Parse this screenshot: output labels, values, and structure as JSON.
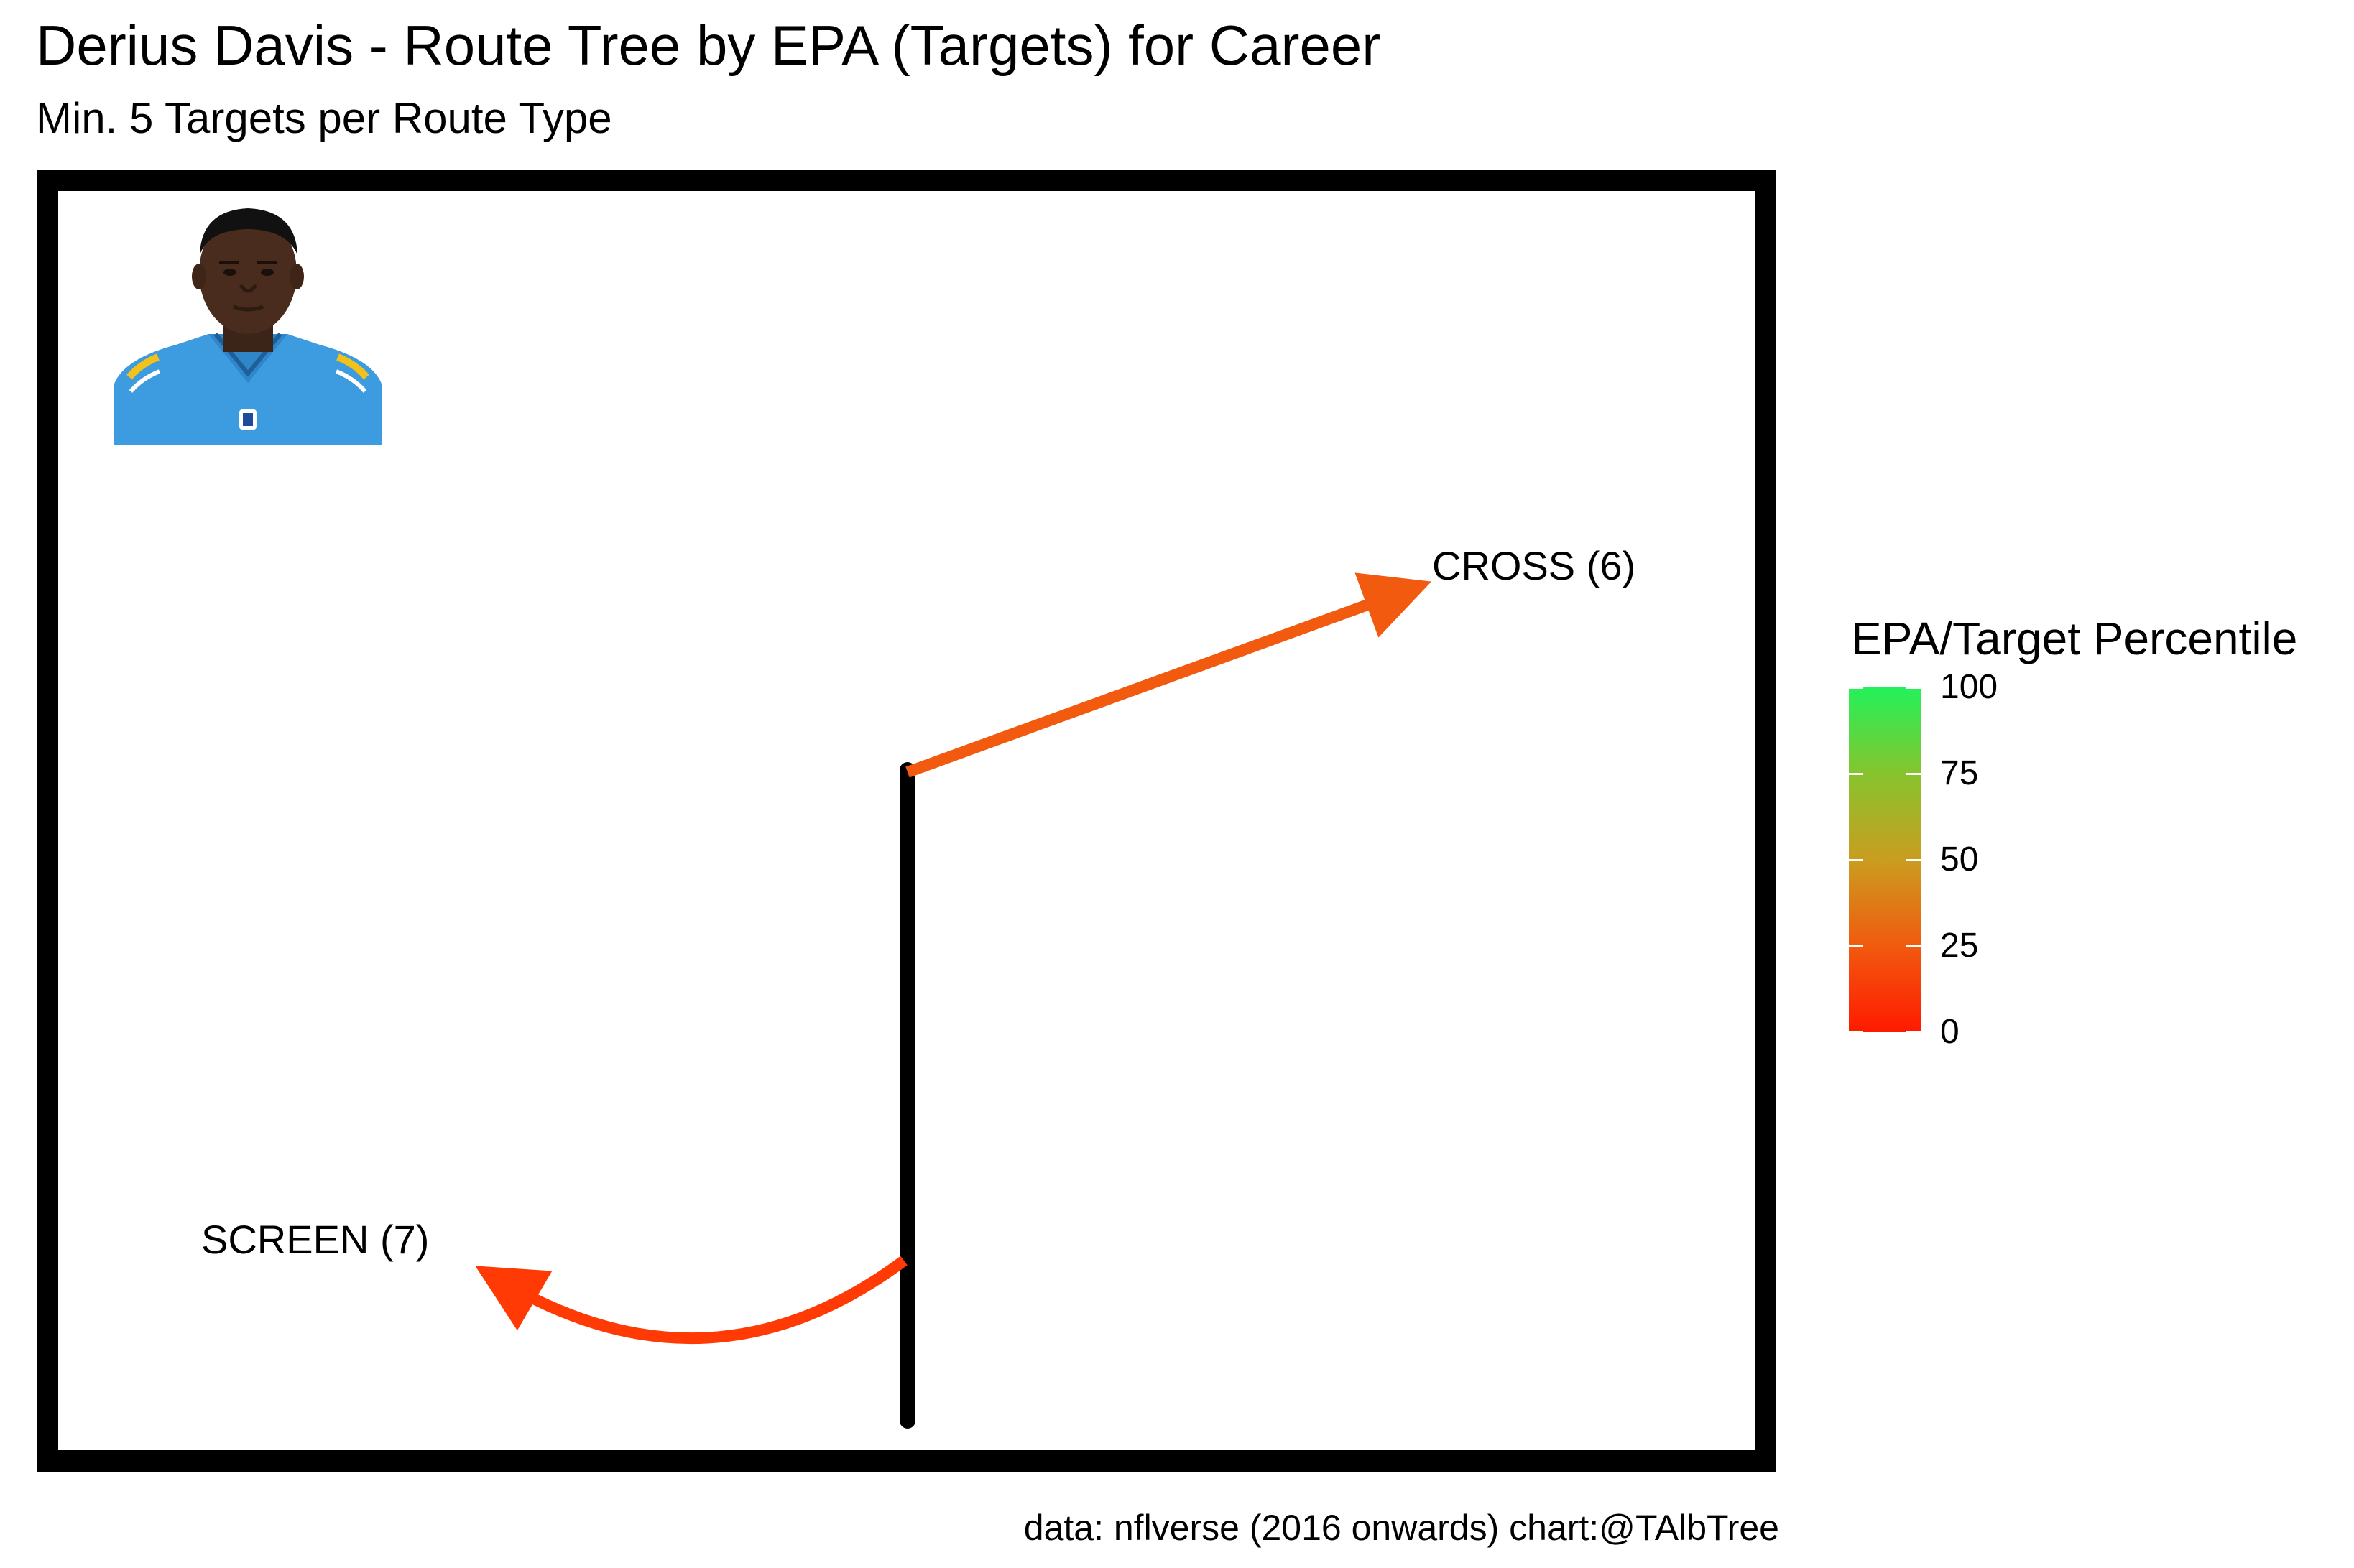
{
  "title": "Derius Davis - Route Tree by EPA (Targets) for Career",
  "subtitle": "Min. 5 Targets per Route Type",
  "caption": "data: nflverse (2016 onwards)  chart:@TAlbTree",
  "legend": {
    "title": "EPA/Target Percentile",
    "ticks": [
      "0",
      "25",
      "50",
      "75",
      "100"
    ],
    "color_low": "#ff1a00",
    "color_high": "#22f25a"
  },
  "chart_data": {
    "type": "route_tree",
    "routes": [
      {
        "label": "CROSS (6)",
        "route": "CROSS",
        "targets": 6,
        "color": "#f15a0f",
        "shape": "straight"
      },
      {
        "label": "SCREEN (7)",
        "route": "SCREEN",
        "targets": 7,
        "color": "#ff3a05",
        "shape": "curved"
      }
    ],
    "stem_color": "#000000",
    "frame_color": "#000000",
    "legend_position": "right"
  },
  "player_image": {
    "jersey_color": "#3d9be0",
    "trim_color": "#f2c21a"
  }
}
